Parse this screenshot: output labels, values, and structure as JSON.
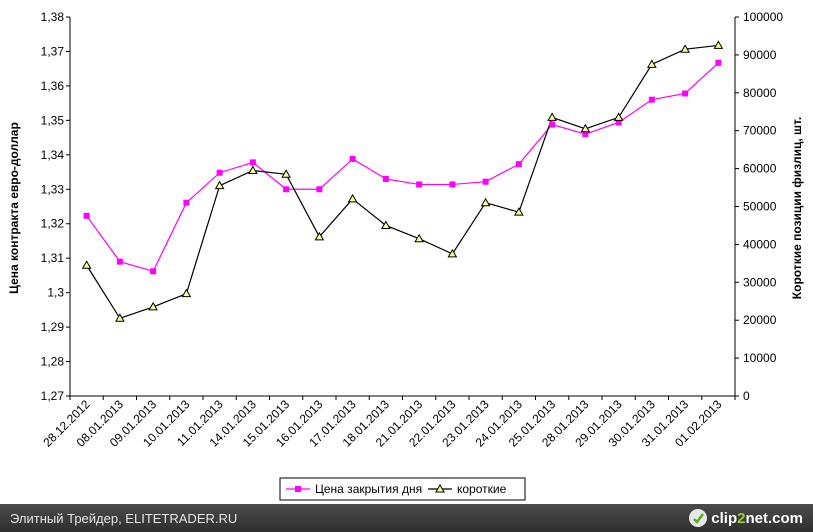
{
  "chart_data": {
    "type": "line",
    "categories": [
      "28.12.2012",
      "08.01.2013",
      "09.01.2013",
      "10.01.2013",
      "11.01.2013",
      "14.01.2013",
      "15.01.2013",
      "16.01.2013",
      "17.01.2013",
      "18.01.2013",
      "21.01.2013",
      "22.01.2013",
      "23.01.2013",
      "24.01.2013",
      "25.01.2013",
      "28.01.2013",
      "29.01.2013",
      "30.01.2013",
      "31.01.2013",
      "01.02.2013"
    ],
    "ylabel": "Цена контракта евро-доллар",
    "y2label": "Короткие позиции физлиц, шт.",
    "ylim": [
      1.27,
      1.38
    ],
    "y2lim": [
      0,
      100000
    ],
    "yticks": [
      "1,27",
      "1,28",
      "1,29",
      "1,3",
      "1,31",
      "1,32",
      "1,33",
      "1,34",
      "1,35",
      "1,36",
      "1,37",
      "1,38"
    ],
    "y2ticks": [
      "0",
      "10000",
      "20000",
      "30000",
      "40000",
      "50000",
      "60000",
      "70000",
      "80000",
      "90000",
      "100000"
    ],
    "grid": false,
    "legend": "bottom-center",
    "series": [
      {
        "name": "Цена закрытия дня",
        "axis": "left",
        "color": "#ff00ff",
        "marker": "square",
        "values": [
          1.3223,
          1.309,
          1.3062,
          1.3261,
          1.3348,
          1.3378,
          1.33,
          1.33,
          1.3388,
          1.333,
          1.3314,
          1.3314,
          1.3322,
          1.3373,
          1.3488,
          1.346,
          1.3494,
          1.356,
          1.3578,
          1.3667
        ]
      },
      {
        "name": "короткие",
        "axis": "right",
        "color": "#000000",
        "marker": "triangle",
        "marker_fill": "#ffff99",
        "values": [
          34500,
          20500,
          23500,
          27000,
          55500,
          59500,
          58500,
          42000,
          52000,
          45000,
          41500,
          37500,
          51000,
          48500,
          73500,
          70500,
          73500,
          87500,
          91500,
          92500
        ]
      }
    ]
  },
  "footer": {
    "caption": "Элитный Трейдер, ELITETRADER.RU",
    "watermark_prefix": "clip",
    "watermark_num": "2",
    "watermark_suffix": "net.com"
  }
}
